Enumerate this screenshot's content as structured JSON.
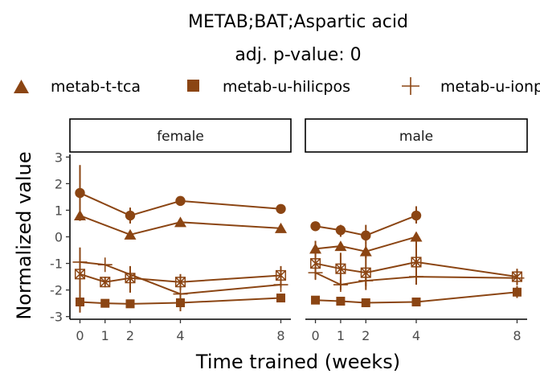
{
  "chart_data": {
    "type": "line",
    "title": "METAB;BAT;Aspartic acid",
    "subtitle": "adj. p-value: 0",
    "xlabel": "Time trained (weeks)",
    "ylabel": "Normalized value",
    "x_ticks": [
      0,
      1,
      2,
      4,
      8
    ],
    "y_ticks": [
      3,
      2,
      1,
      0,
      -1,
      -2,
      -3
    ],
    "xlim": [
      -0.4,
      8.4
    ],
    "ylim": [
      -3.1,
      3.1
    ],
    "color": "#8B4513",
    "legend_position": "top",
    "legend": [
      {
        "label": "metab-t-tca",
        "shape": "triangle"
      },
      {
        "label": "metab-u-hilicpos",
        "shape": "square"
      },
      {
        "label": "metab-u-ionpneg",
        "shape": "plus"
      }
    ],
    "panels": [
      {
        "strip": "female",
        "series": [
          {
            "shape": "circle",
            "x": [
              0,
              2,
              4,
              8
            ],
            "y": [
              1.65,
              0.8,
              1.35,
              1.05
            ],
            "lo": [
              0.6,
              0.5,
              1.3,
              1.0
            ],
            "hi": [
              2.7,
              1.1,
              1.4,
              1.1
            ]
          },
          {
            "shape": "triangle",
            "x": [
              0,
              2,
              4,
              8
            ],
            "y": [
              0.8,
              0.08,
              0.55,
              0.32
            ],
            "lo": [
              0.8,
              0.08,
              0.55,
              0.32
            ],
            "hi": [
              0.8,
              0.08,
              0.55,
              0.32
            ]
          },
          {
            "shape": "plus",
            "x": [
              0,
              1,
              4,
              8
            ],
            "y": [
              -0.95,
              -1.05,
              -2.15,
              -1.8
            ],
            "lo": [
              -0.95,
              -1.05,
              -2.15,
              -1.8
            ],
            "hi": [
              -0.95,
              -1.05,
              -2.15,
              -1.8
            ]
          },
          {
            "shape": "boxcross",
            "x": [
              0,
              1,
              2,
              4,
              8
            ],
            "y": [
              -1.4,
              -1.7,
              -1.55,
              -1.7,
              -1.45
            ],
            "lo": [
              -2.1,
              -1.9,
              -2.1,
              -2.0,
              -1.9
            ],
            "hi": [
              -0.4,
              -1.5,
              -1.1,
              -1.4,
              -1.1
            ]
          },
          {
            "shape": "square",
            "x": [
              0,
              1,
              2,
              4,
              8
            ],
            "y": [
              -2.45,
              -2.5,
              -2.52,
              -2.48,
              -2.3
            ],
            "lo": [
              -2.85,
              -2.6,
              -2.6,
              -2.8,
              -2.4
            ],
            "hi": [
              -2.05,
              -2.4,
              -2.45,
              -2.15,
              -2.2
            ]
          }
        ]
      },
      {
        "strip": "male",
        "series": [
          {
            "shape": "circle",
            "x": [
              0,
              1,
              2,
              4
            ],
            "y": [
              0.4,
              0.25,
              0.05,
              0.8
            ],
            "lo": [
              0.25,
              0.0,
              -0.3,
              0.5
            ],
            "hi": [
              0.55,
              0.45,
              0.45,
              1.15
            ]
          },
          {
            "shape": "triangle",
            "x": [
              0,
              1,
              2,
              4
            ],
            "y": [
              -0.45,
              -0.35,
              -0.55,
              0.0
            ],
            "lo": [
              -0.75,
              -0.5,
              -0.8,
              -0.1
            ],
            "hi": [
              -0.15,
              -0.2,
              -0.3,
              0.1
            ]
          },
          {
            "shape": "plus",
            "x": [
              0,
              1,
              2,
              4,
              8
            ],
            "y": [
              -1.35,
              -1.8,
              -1.65,
              -1.5,
              -1.55
            ],
            "lo": [
              -1.6,
              -2.0,
              -1.85,
              -1.6,
              -1.65
            ],
            "hi": [
              -1.1,
              -1.6,
              -1.45,
              -1.4,
              -1.45
            ]
          },
          {
            "shape": "boxcross",
            "x": [
              0,
              1,
              2,
              4,
              8
            ],
            "y": [
              -1.0,
              -1.2,
              -1.35,
              -0.95,
              -1.5
            ],
            "lo": [
              -1.4,
              -1.8,
              -2.0,
              -1.8,
              -1.8
            ],
            "hi": [
              -0.6,
              -0.6,
              -0.7,
              -0.1,
              -1.2
            ]
          },
          {
            "shape": "square",
            "x": [
              0,
              1,
              2,
              4,
              8
            ],
            "y": [
              -2.38,
              -2.42,
              -2.48,
              -2.45,
              -2.08
            ],
            "lo": [
              -2.45,
              -2.55,
              -2.55,
              -2.5,
              -2.3
            ],
            "hi": [
              -2.3,
              -2.3,
              -2.4,
              -2.4,
              -1.85
            ]
          }
        ]
      }
    ]
  }
}
